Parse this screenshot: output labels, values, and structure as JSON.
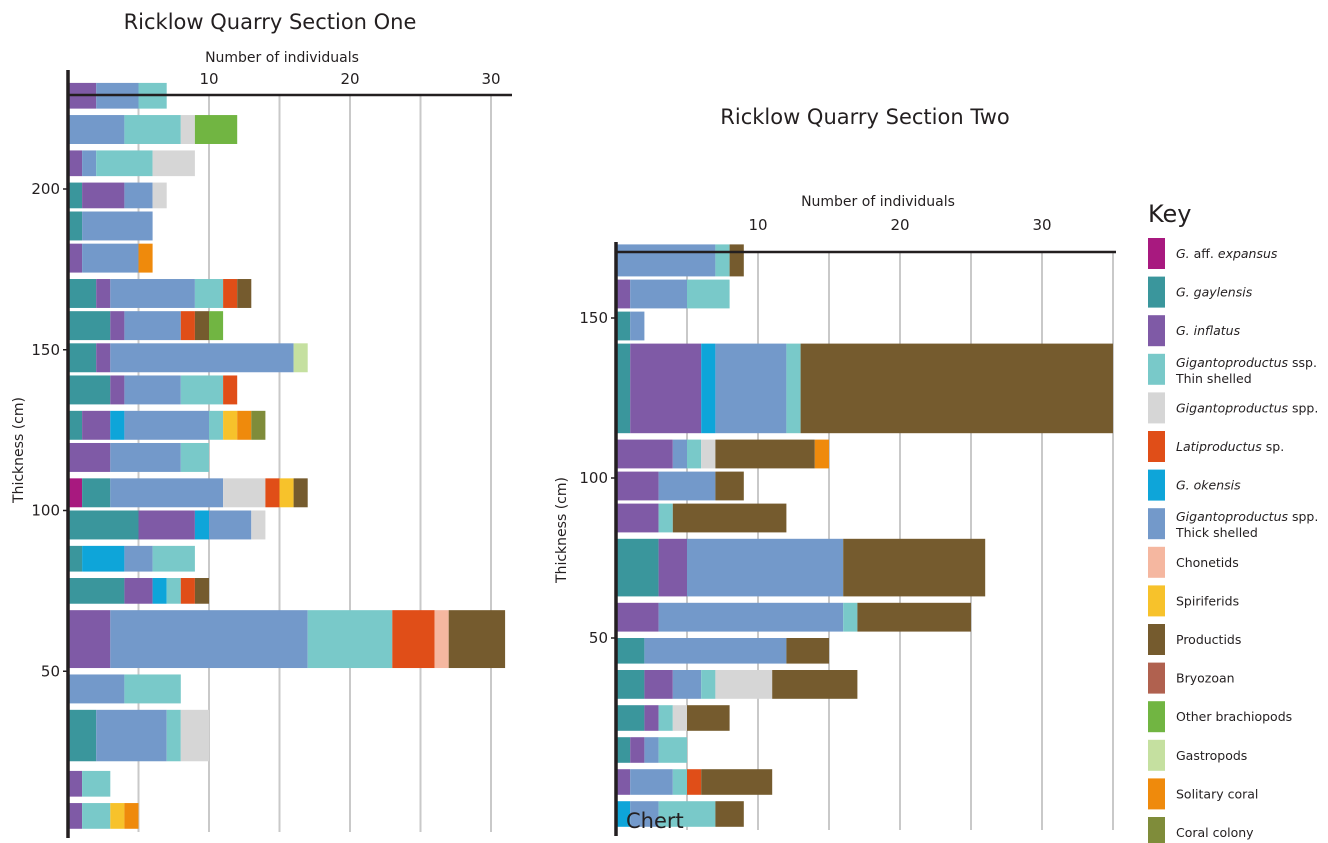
{
  "colors": {
    "aff_expansus": "#a8197f",
    "gaylensis": "#3a969c",
    "inflatus": "#7f5aa6",
    "thin_shelled": "#79c9c9",
    "spp": "#d6d6d6",
    "latiproductus": "#e04e18",
    "okensis": "#0ea5d9",
    "thick_shelled": "#7399ca",
    "chonetids": "#f5b7a0",
    "spiriferids": "#f7c22b",
    "productids": "#755b2e",
    "bryozoan": "#b0614f",
    "other_brachiopods": "#71b542",
    "gastropods": "#c5e0a0",
    "solitary_coral": "#ef8a0c",
    "coral_colony": "#7f8c3a"
  },
  "key": {
    "title": "Key",
    "items": [
      {
        "id": "aff_expansus",
        "parts": [
          {
            "t": "G.",
            "i": true
          },
          {
            "t": " aff. ",
            "i": false
          },
          {
            "t": "expansus",
            "i": true
          }
        ]
      },
      {
        "id": "gaylensis",
        "parts": [
          {
            "t": "G. gaylensis",
            "i": true
          }
        ]
      },
      {
        "id": "inflatus",
        "parts": [
          {
            "t": "G. inflatus",
            "i": true
          }
        ]
      },
      {
        "id": "thin_shelled",
        "parts": [
          {
            "t": "Gigantoproductus",
            "i": true
          },
          {
            "t": " ssp.",
            "i": false
          }
        ],
        "line2": "Thin shelled"
      },
      {
        "id": "spp",
        "parts": [
          {
            "t": "Gigantoproductus",
            "i": true
          },
          {
            "t": " spp.",
            "i": false
          }
        ]
      },
      {
        "id": "latiproductus",
        "parts": [
          {
            "t": "Latiproductus",
            "i": true
          },
          {
            "t": " sp.",
            "i": false
          }
        ]
      },
      {
        "id": "okensis",
        "parts": [
          {
            "t": "G. okensis",
            "i": true
          }
        ]
      },
      {
        "id": "thick_shelled",
        "parts": [
          {
            "t": "Gigantoproductus",
            "i": true
          },
          {
            "t": " spp.",
            "i": false
          }
        ],
        "line2": "Thick shelled"
      },
      {
        "id": "chonetids",
        "parts": [
          {
            "t": "Chonetids",
            "i": false
          }
        ]
      },
      {
        "id": "spiriferids",
        "parts": [
          {
            "t": "Spiriferids",
            "i": false
          }
        ]
      },
      {
        "id": "productids",
        "parts": [
          {
            "t": "Productids",
            "i": false
          }
        ]
      },
      {
        "id": "bryozoan",
        "parts": [
          {
            "t": "Bryozoan",
            "i": false
          }
        ]
      },
      {
        "id": "other_brachiopods",
        "parts": [
          {
            "t": "Other brachiopods",
            "i": false
          }
        ]
      },
      {
        "id": "gastropods",
        "parts": [
          {
            "t": "Gastropods",
            "i": false
          }
        ]
      },
      {
        "id": "solitary_coral",
        "parts": [
          {
            "t": "Solitary coral",
            "i": false
          }
        ]
      },
      {
        "id": "coral_colony",
        "parts": [
          {
            "t": "Coral colony",
            "i": false
          }
        ]
      }
    ]
  },
  "chart_data": [
    {
      "type": "bar",
      "orientation": "horizontal-stacked",
      "title": "Ricklow Quarry Section One",
      "xlabel": "Number of individuals",
      "ylabel": "Thickness (cm)",
      "xlim": [
        0,
        31
      ],
      "x_ticks": [
        10,
        20,
        30
      ],
      "y_ticks": [
        50,
        100,
        150,
        200
      ],
      "grid": "vertical",
      "beds": [
        {
          "bottom": 225,
          "top": 233,
          "counts": [
            [
              "inflatus",
              2
            ],
            [
              "thick_shelled",
              3
            ],
            [
              "thin_shelled",
              2
            ]
          ]
        },
        {
          "bottom": 214,
          "top": 223,
          "counts": [
            [
              "thick_shelled",
              4
            ],
            [
              "thin_shelled",
              4
            ],
            [
              "spp",
              1
            ],
            [
              "other_brachiopods",
              3
            ]
          ]
        },
        {
          "bottom": 204,
          "top": 212,
          "counts": [
            [
              "inflatus",
              1
            ],
            [
              "thick_shelled",
              1
            ],
            [
              "thin_shelled",
              4
            ],
            [
              "spp",
              3
            ]
          ]
        },
        {
          "bottom": 194,
          "top": 202,
          "counts": [
            [
              "gaylensis",
              1
            ],
            [
              "inflatus",
              3
            ],
            [
              "thick_shelled",
              2
            ],
            [
              "spp",
              1
            ]
          ]
        },
        {
          "bottom": 184,
          "top": 193,
          "counts": [
            [
              "gaylensis",
              1
            ],
            [
              "thick_shelled",
              5
            ]
          ]
        },
        {
          "bottom": 174,
          "top": 183,
          "counts": [
            [
              "inflatus",
              1
            ],
            [
              "thick_shelled",
              4
            ],
            [
              "solitary_coral",
              1
            ]
          ]
        },
        {
          "bottom": 163,
          "top": 172,
          "counts": [
            [
              "gaylensis",
              2
            ],
            [
              "inflatus",
              1
            ],
            [
              "thick_shelled",
              6
            ],
            [
              "thin_shelled",
              2
            ],
            [
              "latiproductus",
              1
            ],
            [
              "productids",
              1
            ]
          ]
        },
        {
          "bottom": 153,
          "top": 162,
          "counts": [
            [
              "gaylensis",
              3
            ],
            [
              "inflatus",
              1
            ],
            [
              "thick_shelled",
              4
            ],
            [
              "latiproductus",
              1
            ],
            [
              "productids",
              1
            ],
            [
              "other_brachiopods",
              1
            ]
          ]
        },
        {
          "bottom": 143,
          "top": 152,
          "counts": [
            [
              "gaylensis",
              2
            ],
            [
              "inflatus",
              1
            ],
            [
              "thick_shelled",
              13
            ],
            [
              "gastropods",
              1
            ]
          ]
        },
        {
          "bottom": 133,
          "top": 142,
          "counts": [
            [
              "gaylensis",
              3
            ],
            [
              "inflatus",
              1
            ],
            [
              "thick_shelled",
              4
            ],
            [
              "thin_shelled",
              3
            ],
            [
              "latiproductus",
              1
            ]
          ]
        },
        {
          "bottom": 122,
          "top": 131,
          "counts": [
            [
              "gaylensis",
              1
            ],
            [
              "inflatus",
              2
            ],
            [
              "okensis",
              1
            ],
            [
              "thick_shelled",
              6
            ],
            [
              "thin_shelled",
              1
            ],
            [
              "spiriferids",
              1
            ],
            [
              "solitary_coral",
              1
            ],
            [
              "coral_colony",
              1
            ]
          ]
        },
        {
          "bottom": 112,
          "top": 121,
          "counts": [
            [
              "inflatus",
              3
            ],
            [
              "thick_shelled",
              5
            ],
            [
              "thin_shelled",
              2
            ]
          ]
        },
        {
          "bottom": 101,
          "top": 110,
          "counts": [
            [
              "aff_expansus",
              1
            ],
            [
              "gaylensis",
              2
            ],
            [
              "thick_shelled",
              8
            ],
            [
              "spp",
              3
            ],
            [
              "latiproductus",
              1
            ],
            [
              "spiriferids",
              1
            ],
            [
              "productids",
              1
            ]
          ]
        },
        {
          "bottom": 91,
          "top": 100,
          "counts": [
            [
              "gaylensis",
              5
            ],
            [
              "inflatus",
              4
            ],
            [
              "okensis",
              1
            ],
            [
              "thick_shelled",
              3
            ],
            [
              "spp",
              1
            ]
          ]
        },
        {
          "bottom": 81,
          "top": 89,
          "counts": [
            [
              "gaylensis",
              1
            ],
            [
              "okensis",
              3
            ],
            [
              "thick_shelled",
              2
            ],
            [
              "thin_shelled",
              3
            ]
          ]
        },
        {
          "bottom": 71,
          "top": 79,
          "counts": [
            [
              "gaylensis",
              4
            ],
            [
              "inflatus",
              2
            ],
            [
              "okensis",
              1
            ],
            [
              "thin_shelled",
              1
            ],
            [
              "latiproductus",
              1
            ],
            [
              "productids",
              1
            ]
          ]
        },
        {
          "bottom": 51,
          "top": 69,
          "counts": [
            [
              "inflatus",
              3
            ],
            [
              "thick_shelled",
              14
            ],
            [
              "thin_shelled",
              6
            ],
            [
              "latiproductus",
              3
            ],
            [
              "chonetids",
              1
            ],
            [
              "productids",
              4
            ]
          ]
        },
        {
          "bottom": 40,
          "top": 49,
          "counts": [
            [
              "thick_shelled",
              4
            ],
            [
              "thin_shelled",
              4
            ]
          ]
        },
        {
          "bottom": 22,
          "top": 38,
          "counts": [
            [
              "gaylensis",
              2
            ],
            [
              "thick_shelled",
              5
            ],
            [
              "thin_shelled",
              1
            ],
            [
              "spp",
              2
            ]
          ]
        },
        {
          "bottom": 11,
          "top": 19,
          "counts": [
            [
              "inflatus",
              1
            ],
            [
              "thin_shelled",
              2
            ]
          ]
        },
        {
          "bottom": 1,
          "top": 9,
          "counts": [
            [
              "inflatus",
              1
            ],
            [
              "thin_shelled",
              2
            ],
            [
              "spiriferids",
              1
            ],
            [
              "solitary_coral",
              1
            ]
          ]
        }
      ]
    },
    {
      "type": "bar",
      "orientation": "horizontal-stacked",
      "title": "Ricklow Quarry Section Two",
      "xlabel": "Number of individuals",
      "ylabel": "Thickness (cm)",
      "xlim": [
        0,
        35
      ],
      "x_ticks": [
        10,
        20,
        30
      ],
      "y_ticks": [
        50,
        100,
        150
      ],
      "grid": "vertical",
      "annotation": "Chert",
      "beds": [
        {
          "bottom": 163,
          "top": 173,
          "counts": [
            [
              "thick_shelled",
              7
            ],
            [
              "thin_shelled",
              1
            ],
            [
              "productids",
              1
            ]
          ]
        },
        {
          "bottom": 153,
          "top": 162,
          "counts": [
            [
              "inflatus",
              1
            ],
            [
              "thick_shelled",
              4
            ],
            [
              "thin_shelled",
              3
            ]
          ]
        },
        {
          "bottom": 143,
          "top": 152,
          "counts": [
            [
              "gaylensis",
              1
            ],
            [
              "thick_shelled",
              1
            ]
          ]
        },
        {
          "bottom": 114,
          "top": 142,
          "counts": [
            [
              "gaylensis",
              1
            ],
            [
              "inflatus",
              5
            ],
            [
              "okensis",
              1
            ],
            [
              "thick_shelled",
              5
            ],
            [
              "thin_shelled",
              1
            ],
            [
              "productids",
              22
            ]
          ]
        },
        {
          "bottom": 103,
          "top": 112,
          "counts": [
            [
              "inflatus",
              4
            ],
            [
              "thick_shelled",
              1
            ],
            [
              "thin_shelled",
              1
            ],
            [
              "spp",
              1
            ],
            [
              "productids",
              7
            ],
            [
              "solitary_coral",
              1
            ]
          ]
        },
        {
          "bottom": 93,
          "top": 102,
          "counts": [
            [
              "inflatus",
              3
            ],
            [
              "thick_shelled",
              4
            ],
            [
              "productids",
              2
            ]
          ]
        },
        {
          "bottom": 83,
          "top": 92,
          "counts": [
            [
              "inflatus",
              3
            ],
            [
              "thin_shelled",
              1
            ],
            [
              "productids",
              8
            ]
          ]
        },
        {
          "bottom": 63,
          "top": 81,
          "counts": [
            [
              "gaylensis",
              3
            ],
            [
              "inflatus",
              2
            ],
            [
              "thick_shelled",
              11
            ],
            [
              "productids",
              10
            ]
          ]
        },
        {
          "bottom": 52,
          "top": 61,
          "counts": [
            [
              "inflatus",
              3
            ],
            [
              "thick_shelled",
              13
            ],
            [
              "thin_shelled",
              1
            ],
            [
              "productids",
              8
            ]
          ]
        },
        {
          "bottom": 42,
          "top": 50,
          "counts": [
            [
              "gaylensis",
              2
            ],
            [
              "thick_shelled",
              10
            ],
            [
              "productids",
              3
            ]
          ]
        },
        {
          "bottom": 31,
          "top": 40,
          "counts": [
            [
              "gaylensis",
              2
            ],
            [
              "inflatus",
              2
            ],
            [
              "thick_shelled",
              2
            ],
            [
              "thin_shelled",
              1
            ],
            [
              "spp",
              4
            ],
            [
              "productids",
              6
            ]
          ]
        },
        {
          "bottom": 21,
          "top": 29,
          "counts": [
            [
              "gaylensis",
              2
            ],
            [
              "inflatus",
              1
            ],
            [
              "thin_shelled",
              1
            ],
            [
              "spp",
              1
            ],
            [
              "productids",
              3
            ]
          ]
        },
        {
          "bottom": 11,
          "top": 19,
          "counts": [
            [
              "gaylensis",
              1
            ],
            [
              "inflatus",
              1
            ],
            [
              "thick_shelled",
              1
            ],
            [
              "thin_shelled",
              2
            ]
          ]
        },
        {
          "bottom": 1,
          "top": 9,
          "counts": [
            [
              "inflatus",
              1
            ],
            [
              "thick_shelled",
              3
            ],
            [
              "thin_shelled",
              1
            ],
            [
              "latiproductus",
              1
            ],
            [
              "productids",
              5
            ]
          ]
        },
        {
          "bottom": -9,
          "top": -1,
          "counts": [
            [
              "okensis",
              1
            ],
            [
              "thick_shelled",
              2
            ],
            [
              "thin_shelled",
              4
            ],
            [
              "productids",
              2
            ]
          ]
        }
      ]
    }
  ]
}
